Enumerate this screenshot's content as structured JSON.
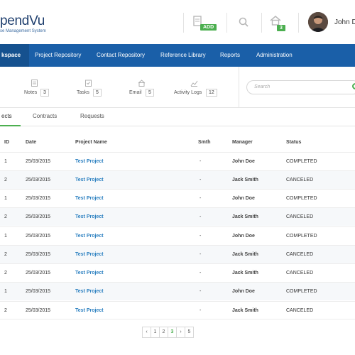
{
  "brand": {
    "name": "pendVu",
    "tagline": "se Management System"
  },
  "header": {
    "add_badge": "ADD",
    "home_badge": "3",
    "user_name": "John Do"
  },
  "nav": {
    "items": [
      {
        "label": "kspace"
      },
      {
        "label": "Project Repository"
      },
      {
        "label": "Contact Repository"
      },
      {
        "label": "Reference Library"
      },
      {
        "label": "Reports"
      },
      {
        "label": "Administration"
      }
    ]
  },
  "toolbar": {
    "tools": [
      {
        "label": "Notes",
        "count": "3",
        "icon": "notes-icon"
      },
      {
        "label": "Tasks",
        "count": "5",
        "icon": "tasks-icon"
      },
      {
        "label": "Email",
        "count": "5",
        "icon": "email-icon"
      },
      {
        "label": "Activity Logs",
        "count": "12",
        "icon": "activity-logs-icon"
      }
    ],
    "search_placeholder": "Search"
  },
  "tabs": [
    {
      "label": "ects"
    },
    {
      "label": "Contracts"
    },
    {
      "label": "Requests"
    }
  ],
  "table": {
    "columns": [
      "ID",
      "Date",
      "Project Name",
      "Smth",
      "Manager",
      "Status"
    ],
    "rows": [
      {
        "id": "1",
        "date": "25/03/2015",
        "project": "Test Project",
        "smth": "-",
        "manager": "John Doe",
        "status": "COMPLETED"
      },
      {
        "id": "2",
        "date": "25/03/2015",
        "project": "Test Project",
        "smth": "-",
        "manager": "Jack Smith",
        "status": "CANCELED"
      },
      {
        "id": "1",
        "date": "25/03/2015",
        "project": "Test Project",
        "smth": "-",
        "manager": "John Doe",
        "status": "COMPLETED"
      },
      {
        "id": "2",
        "date": "25/03/2015",
        "project": "Test Project",
        "smth": "-",
        "manager": "Jack Smith",
        "status": "CANCELED"
      },
      {
        "id": "1",
        "date": "25/03/2015",
        "project": "Test Project",
        "smth": "-",
        "manager": "John Doe",
        "status": "COMPLETED"
      },
      {
        "id": "2",
        "date": "25/03/2015",
        "project": "Test Project",
        "smth": "-",
        "manager": "Jack Smith",
        "status": "CANCELED"
      },
      {
        "id": "2",
        "date": "25/03/2015",
        "project": "Test Project",
        "smth": "-",
        "manager": "Jack Smith",
        "status": "CANCELED"
      },
      {
        "id": "1",
        "date": "25/03/2015",
        "project": "Test Project",
        "smth": "-",
        "manager": "John Doe",
        "status": "COMPLETED"
      },
      {
        "id": "2",
        "date": "25/03/2015",
        "project": "Test Project",
        "smth": "-",
        "manager": "Jack Smith",
        "status": "CANCELED"
      }
    ]
  },
  "pagination": {
    "prev": "‹",
    "pages": [
      "1",
      "2",
      "3",
      "›",
      "5"
    ],
    "current": "3"
  },
  "colors": {
    "nav_bg": "#1a5fa8",
    "accent_green": "#4caf50",
    "link_blue": "#2a7fc0"
  }
}
